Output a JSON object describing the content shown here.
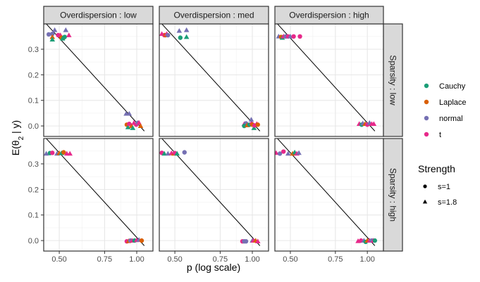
{
  "chart_data": {
    "type": "scatter",
    "xlabel": "p (log scale)",
    "ylabel": "E(θ2 | y)",
    "x_scale": "log",
    "xlim": [
      0.435,
      1.156
    ],
    "ylim": [
      -0.041,
      0.399
    ],
    "x_ticks": [
      0.5,
      0.75,
      1.0
    ],
    "x_tick_labels": [
      "0.50",
      "0.75",
      "1.00"
    ],
    "y_ticks": [
      0.0,
      0.1,
      0.2,
      0.3
    ],
    "y_tick_labels": [
      "0.0",
      "0.1",
      "0.2",
      "0.3"
    ],
    "grid": true,
    "facet_cols": {
      "variable": "Overdispersion",
      "labels": [
        "Overdispersion : low",
        "Overdispersion : med",
        "Overdispersion : high"
      ]
    },
    "facet_rows": {
      "variable": "Sparsity",
      "labels": [
        "Sparsity : low",
        "Sparsity : high"
      ]
    },
    "reference_line": {
      "description": "diagonal reference line",
      "y_at_p": [
        [
          0.435,
          0.41
        ],
        [
          1.07,
          -0.02
        ]
      ]
    },
    "legend": {
      "placement": "right",
      "color_title": "",
      "color_entries": [
        {
          "label": "Cauchy",
          "color": "#1b9e77"
        },
        {
          "label": "Laplace",
          "color": "#d95f02"
        },
        {
          "label": "normal",
          "color": "#7570b3"
        },
        {
          "label": "t",
          "color": "#e7298a"
        }
      ],
      "shape_title": "Strength",
      "shape_entries": [
        {
          "label": "s=1",
          "shape": "circle"
        },
        {
          "label": "s=1.8",
          "shape": "triangle"
        }
      ]
    },
    "panels": [
      {
        "row": 0,
        "col": 0,
        "points": [
          {
            "p": 0.455,
            "y": 0.358,
            "prior": "normal",
            "s": "s=1"
          },
          {
            "p": 0.47,
            "y": 0.36,
            "prior": "normal",
            "s": "s=1"
          },
          {
            "p": 0.48,
            "y": 0.375,
            "prior": "normal",
            "s": "s=1.8"
          },
          {
            "p": 0.53,
            "y": 0.375,
            "prior": "normal",
            "s": "s=1.8"
          },
          {
            "p": 0.47,
            "y": 0.348,
            "prior": "Laplace",
            "s": "s=1.8"
          },
          {
            "p": 0.47,
            "y": 0.338,
            "prior": "Cauchy",
            "s": "s=1.8"
          },
          {
            "p": 0.495,
            "y": 0.355,
            "prior": "t",
            "s": "s=1"
          },
          {
            "p": 0.505,
            "y": 0.355,
            "prior": "t",
            "s": "s=1.8"
          },
          {
            "p": 0.51,
            "y": 0.345,
            "prior": "Laplace",
            "s": "s=1"
          },
          {
            "p": 0.52,
            "y": 0.345,
            "prior": "Laplace",
            "s": "s=1"
          },
          {
            "p": 0.515,
            "y": 0.342,
            "prior": "Cauchy",
            "s": "s=1.8"
          },
          {
            "p": 0.525,
            "y": 0.348,
            "prior": "Cauchy",
            "s": "s=1"
          },
          {
            "p": 0.545,
            "y": 0.355,
            "prior": "t",
            "s": "s=1.8"
          },
          {
            "p": 0.91,
            "y": 0.048,
            "prior": "normal",
            "s": "s=1.8"
          },
          {
            "p": 0.935,
            "y": 0.048,
            "prior": "normal",
            "s": "s=1.8"
          },
          {
            "p": 0.915,
            "y": 0.005,
            "prior": "Laplace",
            "s": "s=1"
          },
          {
            "p": 0.925,
            "y": -0.005,
            "prior": "Cauchy",
            "s": "s=1.8"
          },
          {
            "p": 0.935,
            "y": 0.008,
            "prior": "t",
            "s": "s=1"
          },
          {
            "p": 0.955,
            "y": 0.0,
            "prior": "Laplace",
            "s": "s=1.8"
          },
          {
            "p": 0.965,
            "y": -0.008,
            "prior": "Cauchy",
            "s": "s=1.8"
          },
          {
            "p": 0.975,
            "y": 0.012,
            "prior": "t",
            "s": "s=1.8"
          },
          {
            "p": 0.995,
            "y": 0.005,
            "prior": "t",
            "s": "s=1"
          },
          {
            "p": 1.01,
            "y": 0.012,
            "prior": "normal",
            "s": "s=1"
          },
          {
            "p": 1.02,
            "y": 0.013,
            "prior": "t",
            "s": "s=1.8"
          },
          {
            "p": 1.035,
            "y": 0.0,
            "prior": "Laplace",
            "s": "s=1.8"
          }
        ]
      },
      {
        "row": 0,
        "col": 1,
        "points": [
          {
            "p": 0.445,
            "y": 0.36,
            "prior": "t",
            "s": "s=1.8"
          },
          {
            "p": 0.455,
            "y": 0.355,
            "prior": "t",
            "s": "s=1"
          },
          {
            "p": 0.46,
            "y": 0.355,
            "prior": "Laplace",
            "s": "s=1"
          },
          {
            "p": 0.465,
            "y": 0.36,
            "prior": "t",
            "s": "s=1.8"
          },
          {
            "p": 0.47,
            "y": 0.355,
            "prior": "normal",
            "s": "s=1"
          },
          {
            "p": 0.52,
            "y": 0.372,
            "prior": "normal",
            "s": "s=1.8"
          },
          {
            "p": 0.555,
            "y": 0.375,
            "prior": "normal",
            "s": "s=1.8"
          },
          {
            "p": 0.525,
            "y": 0.345,
            "prior": "Cauchy",
            "s": "s=1"
          },
          {
            "p": 0.555,
            "y": 0.348,
            "prior": "Cauchy",
            "s": "s=1.8"
          },
          {
            "p": 0.93,
            "y": 0.008,
            "prior": "t",
            "s": "s=1.8"
          },
          {
            "p": 0.945,
            "y": 0.01,
            "prior": "normal",
            "s": "s=1"
          },
          {
            "p": 0.93,
            "y": 0.0,
            "prior": "Cauchy",
            "s": "s=1"
          },
          {
            "p": 0.955,
            "y": 0.003,
            "prior": "Laplace",
            "s": "s=1.8"
          },
          {
            "p": 0.975,
            "y": 0.005,
            "prior": "Cauchy",
            "s": "s=1"
          },
          {
            "p": 0.99,
            "y": 0.025,
            "prior": "normal",
            "s": "s=1.8"
          },
          {
            "p": 0.995,
            "y": 0.008,
            "prior": "t",
            "s": "s=1"
          },
          {
            "p": 1.0,
            "y": 0.005,
            "prior": "Laplace",
            "s": "s=1"
          },
          {
            "p": 1.015,
            "y": -0.008,
            "prior": "Cauchy",
            "s": "s=1.8"
          },
          {
            "p": 1.02,
            "y": 0.002,
            "prior": "t",
            "s": "s=1"
          },
          {
            "p": 1.04,
            "y": 0.008,
            "prior": "t",
            "s": "s=1.8"
          },
          {
            "p": 1.05,
            "y": 0.005,
            "prior": "Laplace",
            "s": "s=1"
          }
        ]
      },
      {
        "row": 0,
        "col": 2,
        "points": [
          {
            "p": 0.45,
            "y": 0.35,
            "prior": "normal",
            "s": "s=1.8"
          },
          {
            "p": 0.46,
            "y": 0.348,
            "prior": "Laplace",
            "s": "s=1"
          },
          {
            "p": 0.465,
            "y": 0.345,
            "prior": "Cauchy",
            "s": "s=1.8"
          },
          {
            "p": 0.47,
            "y": 0.35,
            "prior": "t",
            "s": "s=1.8"
          },
          {
            "p": 0.48,
            "y": 0.35,
            "prior": "normal",
            "s": "s=1"
          },
          {
            "p": 0.49,
            "y": 0.35,
            "prior": "t",
            "s": "s=1"
          },
          {
            "p": 0.5,
            "y": 0.35,
            "prior": "normal",
            "s": "s=1.8"
          },
          {
            "p": 0.515,
            "y": 0.35,
            "prior": "t",
            "s": "s=1"
          },
          {
            "p": 0.545,
            "y": 0.35,
            "prior": "t",
            "s": "s=1"
          },
          {
            "p": 0.93,
            "y": 0.008,
            "prior": "t",
            "s": "s=1.8"
          },
          {
            "p": 0.95,
            "y": 0.005,
            "prior": "Cauchy",
            "s": "s=1"
          },
          {
            "p": 0.96,
            "y": 0.01,
            "prior": "normal",
            "s": "s=1.8"
          },
          {
            "p": 0.98,
            "y": 0.008,
            "prior": "Laplace",
            "s": "s=1.8"
          },
          {
            "p": 1.0,
            "y": 0.005,
            "prior": "t",
            "s": "s=1"
          },
          {
            "p": 1.02,
            "y": 0.012,
            "prior": "normal",
            "s": "s=1.8"
          },
          {
            "p": 1.04,
            "y": 0.008,
            "prior": "t",
            "s": "s=1.8"
          },
          {
            "p": 1.06,
            "y": 0.008,
            "prior": "t",
            "s": "s=1.8"
          }
        ]
      },
      {
        "row": 1,
        "col": 0,
        "points": [
          {
            "p": 0.445,
            "y": 0.34,
            "prior": "normal",
            "s": "s=1.8"
          },
          {
            "p": 0.46,
            "y": 0.342,
            "prior": "Cauchy",
            "s": "s=1"
          },
          {
            "p": 0.47,
            "y": 0.343,
            "prior": "t",
            "s": "s=1"
          },
          {
            "p": 0.49,
            "y": 0.34,
            "prior": "normal",
            "s": "s=1.8"
          },
          {
            "p": 0.5,
            "y": 0.342,
            "prior": "Laplace",
            "s": "s=1.8"
          },
          {
            "p": 0.51,
            "y": 0.342,
            "prior": "Cauchy",
            "s": "s=1.8"
          },
          {
            "p": 0.52,
            "y": 0.345,
            "prior": "Laplace",
            "s": "s=1"
          },
          {
            "p": 0.535,
            "y": 0.34,
            "prior": "t",
            "s": "s=1.8"
          },
          {
            "p": 0.55,
            "y": 0.34,
            "prior": "t",
            "s": "s=1.8"
          },
          {
            "p": 0.915,
            "y": -0.003,
            "prior": "t",
            "s": "s=1"
          },
          {
            "p": 0.93,
            "y": -0.002,
            "prior": "Laplace",
            "s": "s=1.8"
          },
          {
            "p": 0.945,
            "y": 0.0,
            "prior": "normal",
            "s": "s=1"
          },
          {
            "p": 0.96,
            "y": 0.0,
            "prior": "t",
            "s": "s=1.8"
          },
          {
            "p": 0.98,
            "y": 0.0,
            "prior": "Cauchy",
            "s": "s=1"
          },
          {
            "p": 1.0,
            "y": 0.002,
            "prior": "t",
            "s": "s=1.8"
          },
          {
            "p": 1.02,
            "y": 0.003,
            "prior": "normal",
            "s": "s=1.8"
          },
          {
            "p": 1.045,
            "y": 0.0,
            "prior": "Laplace",
            "s": "s=1"
          }
        ]
      },
      {
        "row": 1,
        "col": 1,
        "points": [
          {
            "p": 0.445,
            "y": 0.343,
            "prior": "t",
            "s": "s=1"
          },
          {
            "p": 0.455,
            "y": 0.34,
            "prior": "Cauchy",
            "s": "s=1.8"
          },
          {
            "p": 0.47,
            "y": 0.34,
            "prior": "normal",
            "s": "s=1.8"
          },
          {
            "p": 0.485,
            "y": 0.342,
            "prior": "t",
            "s": "s=1.8"
          },
          {
            "p": 0.495,
            "y": 0.34,
            "prior": "Laplace",
            "s": "s=1.8"
          },
          {
            "p": 0.5,
            "y": 0.342,
            "prior": "t",
            "s": "s=1"
          },
          {
            "p": 0.51,
            "y": 0.34,
            "prior": "Cauchy",
            "s": "s=1.8"
          },
          {
            "p": 0.545,
            "y": 0.345,
            "prior": "normal",
            "s": "s=1"
          },
          {
            "p": 0.915,
            "y": -0.003,
            "prior": "t",
            "s": "s=1"
          },
          {
            "p": 0.93,
            "y": -0.003,
            "prior": "normal",
            "s": "s=1"
          },
          {
            "p": 0.945,
            "y": -0.003,
            "prior": "normal",
            "s": "s=1"
          },
          {
            "p": 1.0,
            "y": 0.0,
            "prior": "normal",
            "s": "s=1.8"
          },
          {
            "p": 1.01,
            "y": 0.0,
            "prior": "t",
            "s": "s=1.8"
          },
          {
            "p": 1.03,
            "y": 0.0,
            "prior": "Laplace",
            "s": "s=1.8"
          },
          {
            "p": 1.05,
            "y": -0.003,
            "prior": "t",
            "s": "s=1.8"
          }
        ]
      },
      {
        "row": 1,
        "col": 2,
        "points": [
          {
            "p": 0.44,
            "y": 0.343,
            "prior": "t",
            "s": "s=1.8"
          },
          {
            "p": 0.455,
            "y": 0.34,
            "prior": "normal",
            "s": "s=1"
          },
          {
            "p": 0.47,
            "y": 0.348,
            "prior": "t",
            "s": "s=1"
          },
          {
            "p": 0.49,
            "y": 0.34,
            "prior": "normal",
            "s": "s=1.8"
          },
          {
            "p": 0.51,
            "y": 0.34,
            "prior": "Laplace",
            "s": "s=1.8"
          },
          {
            "p": 0.52,
            "y": 0.345,
            "prior": "Cauchy",
            "s": "s=1.8"
          },
          {
            "p": 0.53,
            "y": 0.34,
            "prior": "t",
            "s": "s=1.8"
          },
          {
            "p": 0.54,
            "y": 0.343,
            "prior": "normal",
            "s": "s=1.8"
          },
          {
            "p": 0.92,
            "y": -0.002,
            "prior": "t",
            "s": "s=1.8"
          },
          {
            "p": 0.945,
            "y": 0.0,
            "prior": "t",
            "s": "s=1"
          },
          {
            "p": 0.97,
            "y": 0.0,
            "prior": "normal",
            "s": "s=1.8"
          },
          {
            "p": 0.985,
            "y": -0.005,
            "prior": "Cauchy",
            "s": "s=1"
          },
          {
            "p": 1.0,
            "y": 0.0,
            "prior": "Laplace",
            "s": "s=1.8"
          },
          {
            "p": 1.02,
            "y": 0.0,
            "prior": "t",
            "s": "s=1.8"
          },
          {
            "p": 1.04,
            "y": 0.0,
            "prior": "normal",
            "s": "s=1"
          },
          {
            "p": 1.055,
            "y": 0.0,
            "prior": "t",
            "s": "s=1.8"
          },
          {
            "p": 1.07,
            "y": 0.0,
            "prior": "Cauchy",
            "s": "s=1"
          }
        ]
      }
    ]
  }
}
